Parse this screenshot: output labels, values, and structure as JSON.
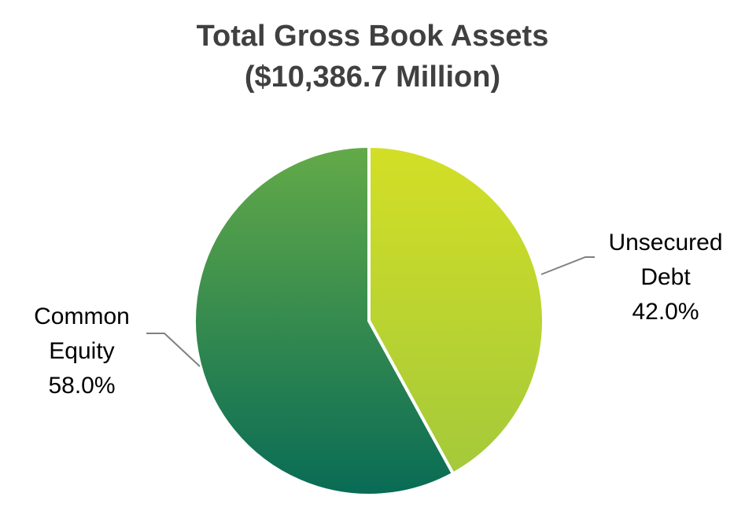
{
  "chart_data": {
    "type": "pie",
    "title": "Total Gross Book Assets",
    "subtitle": "($10,386.7 Million)",
    "slices": [
      {
        "label_lines": [
          "Unsecured",
          "Debt"
        ],
        "value_label": "42.0%",
        "value": 42.0,
        "color_top": "#d3df26",
        "color_bottom": "#a4c93a"
      },
      {
        "label_lines": [
          "Common",
          "Equity"
        ],
        "value_label": "58.0%",
        "value": 58.0,
        "color_top": "#63aa48",
        "color_bottom": "#086b55"
      }
    ],
    "start_angle_deg": 0,
    "direction": "clockwise",
    "legend": "none",
    "leader_line_color": "#808080",
    "separator_color": "#ffffff"
  }
}
